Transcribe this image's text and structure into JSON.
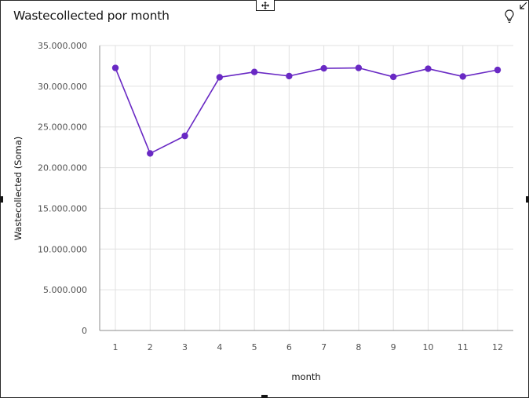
{
  "card": {
    "title": "Wastecollected por month",
    "move_icon": "move-arrows-icon",
    "insight_icon": "lightbulb-icon",
    "resize_icon": "resize-corner-icon"
  },
  "colors": {
    "series": "#6929c4",
    "grid": "#e0e0e0",
    "axis": "#8d8d8d"
  },
  "chart_data": {
    "type": "line",
    "title": "Wastecollected por month",
    "xlabel": "month",
    "ylabel": "Wastecollected (Soma)",
    "x": [
      1,
      2,
      3,
      4,
      5,
      6,
      7,
      8,
      9,
      10,
      11,
      12
    ],
    "x_tick_labels": [
      "1",
      "2",
      "3",
      "4",
      "5",
      "6",
      "7",
      "8",
      "9",
      "10",
      "11",
      "12"
    ],
    "ylim": [
      0,
      35000000
    ],
    "y_ticks": [
      0,
      5000000,
      10000000,
      15000000,
      20000000,
      25000000,
      30000000,
      35000000
    ],
    "y_tick_labels": [
      "0",
      "5.000.000",
      "10.000.000",
      "15.000.000",
      "20.000.000",
      "25.000.000",
      "30.000.000",
      "35.000.000"
    ],
    "series": [
      {
        "values": [
          32250000,
          21750000,
          23900000,
          31100000,
          31750000,
          31250000,
          32200000,
          32250000,
          31150000,
          32150000,
          31200000,
          32000000
        ]
      }
    ],
    "grid": true,
    "legend": "none"
  }
}
